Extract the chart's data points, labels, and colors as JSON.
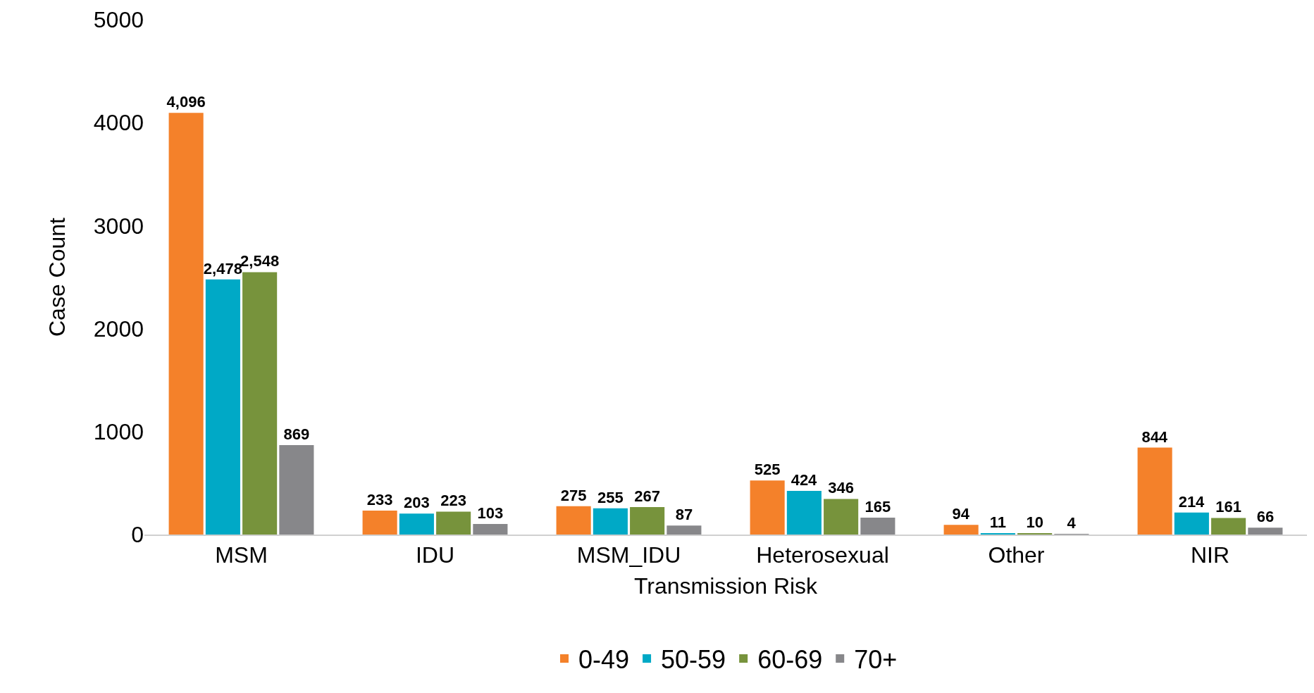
{
  "chart_data": {
    "type": "bar",
    "xlabel": "Transmission Risk",
    "ylabel": "Case Count",
    "categories": [
      "MSM",
      "IDU",
      "MSM_IDU",
      "Heterosexual",
      "Other",
      "NIR"
    ],
    "series": [
      {
        "name": "0-49",
        "color": "#f4812a",
        "values": [
          4096,
          233,
          275,
          525,
          94,
          844
        ],
        "value_labels": [
          "4,096",
          "233",
          "275",
          "525",
          "94",
          "844"
        ]
      },
      {
        "name": "50-59",
        "color": "#00a9c6",
        "values": [
          2478,
          203,
          255,
          424,
          11,
          214
        ],
        "value_labels": [
          "2,478",
          "203",
          "255",
          "424",
          "11",
          "214"
        ]
      },
      {
        "name": "60-69",
        "color": "#77933c",
        "values": [
          2548,
          223,
          267,
          346,
          10,
          161
        ],
        "value_labels": [
          "2,548",
          "223",
          "267",
          "346",
          "10",
          "161"
        ]
      },
      {
        "name": "70+",
        "color": "#87878a",
        "values": [
          869,
          103,
          87,
          165,
          4,
          66
        ],
        "value_labels": [
          "869",
          "103",
          "87",
          "165",
          "4",
          "66"
        ]
      }
    ],
    "ylim": [
      0,
      5000
    ],
    "yticks": [
      0,
      1000,
      2000,
      3000,
      4000,
      5000
    ],
    "grid": false,
    "legend": "bottom"
  }
}
